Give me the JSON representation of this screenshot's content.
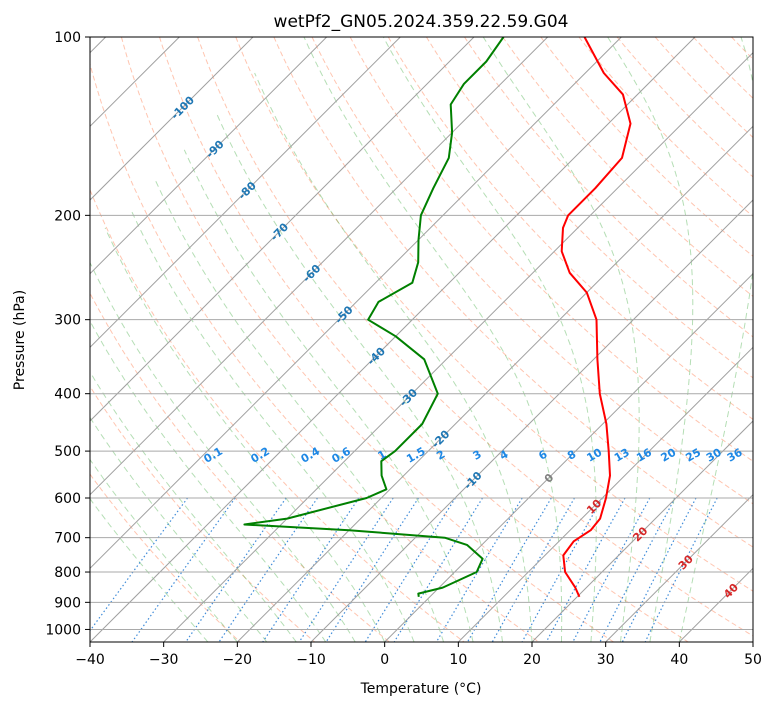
{
  "chart_data": {
    "type": "skew-t log-p",
    "title": "wetPf2_GN05.2024.359.22.59.G04",
    "xlabel": "Temperature (°C)",
    "ylabel": "Pressure (hPa)",
    "xlim": [
      -40,
      50
    ],
    "ylim": [
      1050,
      100
    ],
    "y_scale": "log",
    "grid": true,
    "x_ticks": [
      "−40",
      "−30",
      "−20",
      "−10",
      "0",
      "10",
      "20",
      "30",
      "40",
      "50"
    ],
    "x_tick_values": [
      -40,
      -30,
      -20,
      -10,
      0,
      10,
      20,
      30,
      40,
      50
    ],
    "y_ticks": [
      "100",
      "200",
      "300",
      "400",
      "500",
      "600",
      "700",
      "800",
      "900",
      "1000"
    ],
    "y_tick_values": [
      100,
      200,
      300,
      400,
      500,
      600,
      700,
      800,
      900,
      1000
    ],
    "isotherm_labels": [
      "-100",
      "-90",
      "-80",
      "-70",
      "-60",
      "-50",
      "-40",
      "-30",
      "-20",
      "-10",
      "0",
      "10",
      "20",
      "30",
      "40"
    ],
    "isotherm_label_values": [
      -100,
      -90,
      -80,
      -70,
      -60,
      -50,
      -40,
      -30,
      -20,
      -10,
      0,
      10,
      20,
      30,
      40
    ],
    "mixing_ratio_labels": [
      "0.1",
      "0.2",
      "0.4",
      "0.6",
      "1",
      "1.5",
      "2",
      "3",
      "4",
      "6",
      "8",
      "10",
      "13",
      "16",
      "20",
      "25",
      "30",
      "36"
    ],
    "mixing_ratio_values": [
      0.1,
      0.2,
      0.4,
      0.6,
      1,
      1.5,
      2,
      3,
      4,
      6,
      8,
      10,
      13,
      16,
      20,
      25,
      30,
      36
    ],
    "series": [
      {
        "name": "",
        "color": "#ff0000",
        "points": [
          [
            881,
            20.3
          ],
          [
            850,
            18.5
          ],
          [
            800,
            15.0
          ],
          [
            750,
            12.5
          ],
          [
            710,
            12.0
          ],
          [
            680,
            12.8
          ],
          [
            650,
            12.5
          ],
          [
            600,
            10.5
          ],
          [
            550,
            8.0
          ],
          [
            500,
            4.5
          ],
          [
            450,
            0.5
          ],
          [
            400,
            -4.5
          ],
          [
            350,
            -9.5
          ],
          [
            300,
            -15.0
          ],
          [
            270,
            -20.0
          ],
          [
            250,
            -25.0
          ],
          [
            230,
            -29.0
          ],
          [
            210,
            -32.0
          ],
          [
            200,
            -33.0
          ],
          [
            180,
            -33.0
          ],
          [
            160,
            -33.5
          ],
          [
            140,
            -37.0
          ],
          [
            125,
            -42.0
          ],
          [
            115,
            -47.5
          ],
          [
            100,
            -55.0
          ]
        ]
      },
      {
        "name": "",
        "color": "#008000",
        "points": [
          [
            881,
            -1.5
          ],
          [
            870,
            -2.0
          ],
          [
            850,
            0.5
          ],
          [
            800,
            3.0
          ],
          [
            760,
            2.0
          ],
          [
            720,
            -2.0
          ],
          [
            700,
            -6.0
          ],
          [
            680,
            -20.0
          ],
          [
            665,
            -35.0
          ],
          [
            650,
            -30.0
          ],
          [
            600,
            -22.0
          ],
          [
            580,
            -20.5
          ],
          [
            550,
            -23.0
          ],
          [
            520,
            -25.0
          ],
          [
            500,
            -24.5
          ],
          [
            450,
            -24.5
          ],
          [
            400,
            -26.5
          ],
          [
            350,
            -33.0
          ],
          [
            320,
            -40.0
          ],
          [
            300,
            -46.0
          ],
          [
            280,
            -47.0
          ],
          [
            260,
            -45.0
          ],
          [
            240,
            -47.0
          ],
          [
            220,
            -50.0
          ],
          [
            200,
            -53.0
          ],
          [
            180,
            -55.0
          ],
          [
            160,
            -57.0
          ],
          [
            145,
            -60.0
          ],
          [
            130,
            -64.0
          ],
          [
            120,
            -65.0
          ],
          [
            110,
            -65.0
          ],
          [
            100,
            -66.0
          ]
        ]
      }
    ]
  }
}
